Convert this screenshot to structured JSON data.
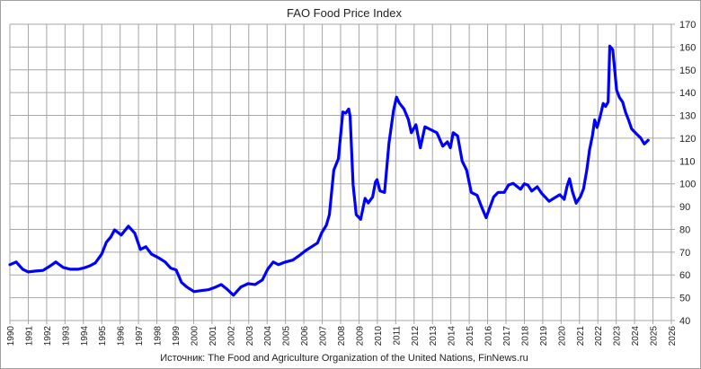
{
  "chart_data": {
    "type": "line",
    "title": "FAO Food Price Index",
    "source": "Источник: The Food and Agriculture Organization of the United Nations, FinNews.ru",
    "xlabel": "",
    "ylabel": "",
    "xlim": [
      1990,
      2026
    ],
    "ylim": [
      40,
      170
    ],
    "y_axis_side": "right",
    "grid": true,
    "x_ticks": [
      1990,
      1991,
      1992,
      1993,
      1994,
      1995,
      1996,
      1997,
      1998,
      1999,
      2000,
      2001,
      2002,
      2003,
      2004,
      2005,
      2006,
      2007,
      2008,
      2009,
      2010,
      2011,
      2012,
      2013,
      2014,
      2015,
      2016,
      2017,
      2018,
      2019,
      2020,
      2021,
      2022,
      2023,
      2024,
      2025,
      2026
    ],
    "y_ticks": [
      40,
      50,
      60,
      70,
      80,
      90,
      100,
      110,
      120,
      130,
      140,
      150,
      160,
      170
    ],
    "series": [
      {
        "name": "FAO Food Price Index",
        "color": "#0000ff",
        "points": [
          [
            1990.0,
            64.5
          ],
          [
            1990.34,
            65.7
          ],
          [
            1990.7,
            62.5
          ],
          [
            1991.0,
            61.3
          ],
          [
            1991.4,
            61.7
          ],
          [
            1991.8,
            62
          ],
          [
            1992.2,
            64
          ],
          [
            1992.5,
            65.7
          ],
          [
            1992.9,
            63.3
          ],
          [
            1993.3,
            62.5
          ],
          [
            1993.7,
            62.5
          ],
          [
            1994.0,
            63
          ],
          [
            1994.35,
            64
          ],
          [
            1994.65,
            65.3
          ],
          [
            1995.0,
            69.2
          ],
          [
            1995.25,
            74.3
          ],
          [
            1995.5,
            76.7
          ],
          [
            1995.7,
            79.8
          ],
          [
            1996.06,
            77.5
          ],
          [
            1996.45,
            81.4
          ],
          [
            1996.8,
            78.3
          ],
          [
            1997.1,
            71.2
          ],
          [
            1997.4,
            72.4
          ],
          [
            1997.7,
            69.2
          ],
          [
            1998.07,
            67.6
          ],
          [
            1998.45,
            65.7
          ],
          [
            1998.75,
            63
          ],
          [
            1999.05,
            62.2
          ],
          [
            1999.34,
            56.7
          ],
          [
            1999.63,
            54.7
          ],
          [
            2000.02,
            52.7
          ],
          [
            2000.4,
            53.1
          ],
          [
            2000.8,
            53.5
          ],
          [
            2001.2,
            54.7
          ],
          [
            2001.5,
            55.8
          ],
          [
            2001.8,
            53.9
          ],
          [
            2002.17,
            51.1
          ],
          [
            2002.57,
            54.7
          ],
          [
            2002.96,
            56.2
          ],
          [
            2003.35,
            55.8
          ],
          [
            2003.74,
            57.8
          ],
          [
            2004.03,
            62.5
          ],
          [
            2004.33,
            65.7
          ],
          [
            2004.62,
            64.5
          ],
          [
            2005.0,
            65.7
          ],
          [
            2005.4,
            66.5
          ],
          [
            2005.8,
            68.8
          ],
          [
            2006.09,
            70.7
          ],
          [
            2006.74,
            74
          ],
          [
            2006.98,
            78.6
          ],
          [
            2007.22,
            81.8
          ],
          [
            2007.39,
            86.4
          ],
          [
            2007.63,
            106
          ],
          [
            2007.88,
            111
          ],
          [
            2008.12,
            131.5
          ],
          [
            2008.28,
            131
          ],
          [
            2008.44,
            132.8
          ],
          [
            2008.52,
            129.5
          ],
          [
            2008.68,
            99.5
          ],
          [
            2008.85,
            86.4
          ],
          [
            2009.09,
            84.4
          ],
          [
            2009.33,
            93.6
          ],
          [
            2009.5,
            91.6
          ],
          [
            2009.74,
            94.2
          ],
          [
            2009.9,
            100.8
          ],
          [
            2009.98,
            101.8
          ],
          [
            2010.14,
            96.9
          ],
          [
            2010.39,
            96.2
          ],
          [
            2010.63,
            117.8
          ],
          [
            2010.88,
            132.2
          ],
          [
            2011.04,
            138
          ],
          [
            2011.2,
            135.4
          ],
          [
            2011.45,
            132.8
          ],
          [
            2011.69,
            128.2
          ],
          [
            2011.85,
            122.4
          ],
          [
            2012.1,
            125.9
          ],
          [
            2012.34,
            115.8
          ],
          [
            2012.59,
            125
          ],
          [
            2012.91,
            123.7
          ],
          [
            2013.24,
            122.4
          ],
          [
            2013.56,
            116.5
          ],
          [
            2013.81,
            118.4
          ],
          [
            2013.97,
            115.8
          ],
          [
            2014.13,
            122.4
          ],
          [
            2014.37,
            121
          ],
          [
            2014.62,
            109.9
          ],
          [
            2014.86,
            106
          ],
          [
            2015.11,
            96.2
          ],
          [
            2015.43,
            94.9
          ],
          [
            2015.68,
            89.7
          ],
          [
            2015.92,
            85.1
          ],
          [
            2016.33,
            94.2
          ],
          [
            2016.57,
            96.2
          ],
          [
            2016.9,
            96.2
          ],
          [
            2017.14,
            99.5
          ],
          [
            2017.39,
            100.2
          ],
          [
            2017.79,
            97.6
          ],
          [
            2018.0,
            100
          ],
          [
            2018.2,
            99.4
          ],
          [
            2018.4,
            96.8
          ],
          [
            2018.7,
            98.7
          ],
          [
            2018.94,
            95.8
          ],
          [
            2019.1,
            94.5
          ],
          [
            2019.35,
            92.3
          ],
          [
            2019.6,
            93.6
          ],
          [
            2019.93,
            95.2
          ],
          [
            2020.17,
            93.2
          ],
          [
            2020.33,
            99.1
          ],
          [
            2020.46,
            102.2
          ],
          [
            2020.62,
            96.5
          ],
          [
            2020.82,
            91.5
          ],
          [
            2021.06,
            94.5
          ],
          [
            2021.22,
            97.8
          ],
          [
            2021.39,
            105.7
          ],
          [
            2021.55,
            114.9
          ],
          [
            2021.71,
            121.4
          ],
          [
            2021.83,
            128
          ],
          [
            2021.96,
            124.7
          ],
          [
            2022.12,
            129.3
          ],
          [
            2022.29,
            135.2
          ],
          [
            2022.42,
            133.9
          ],
          [
            2022.56,
            135.9
          ],
          [
            2022.65,
            160.4
          ],
          [
            2022.81,
            158.8
          ],
          [
            2022.9,
            151.6
          ],
          [
            2023.02,
            141.1
          ],
          [
            2023.18,
            137.8
          ],
          [
            2023.35,
            135.9
          ],
          [
            2023.51,
            131.3
          ],
          [
            2023.67,
            128
          ],
          [
            2023.84,
            124.1
          ],
          [
            2024.08,
            122.1
          ],
          [
            2024.33,
            120.1
          ],
          [
            2024.53,
            117.5
          ],
          [
            2024.74,
            119.1
          ]
        ]
      }
    ]
  }
}
